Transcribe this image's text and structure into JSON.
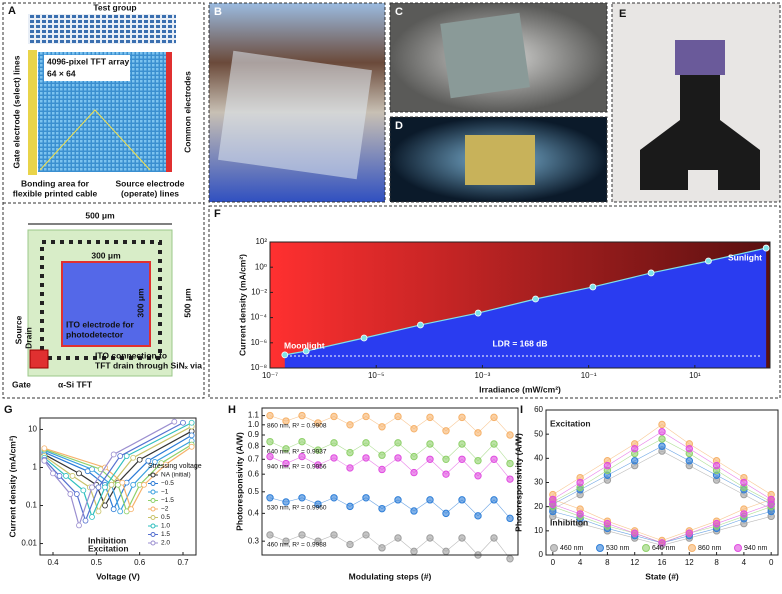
{
  "panels": {
    "A": {
      "letter": "A",
      "test_group": "Test group",
      "array_title": "4096-pixel TFT array",
      "array_size": "64 × 64",
      "gate_lines": "Gate electrode (select) lines",
      "common_electrodes": "Common electrodes",
      "bonding_area": [
        "Bonding area for",
        "flexible printed cable"
      ],
      "source_lines": [
        "Source electrode",
        "(operate) lines"
      ],
      "width_outer": "500 μm",
      "width_inner": "300 μm",
      "height_inner": "300 μm",
      "height_outer": "500 μm",
      "source": "Source",
      "drain": "Drain",
      "ito_electrode": [
        "ITO electrode for",
        "photodetector"
      ],
      "ito_connection": [
        "ITO connection to",
        "TFT drain through SiNₓ via"
      ],
      "gate": "Gate",
      "tft": "α-Si TFT"
    },
    "B": {
      "letter": "B"
    },
    "C": {
      "letter": "C"
    },
    "D": {
      "letter": "D"
    },
    "E": {
      "letter": "E"
    }
  },
  "chart_data": [
    {
      "type": "line",
      "panel": "F",
      "xlabel": "Irradiance (mW/cm²)",
      "ylabel": "Current density (mA/cm²)",
      "xlog": true,
      "ylog": true,
      "color": "#7fe3e8",
      "x": [
        1.9e-07,
        4.8e-07,
        5.9e-06,
        6.8e-05,
        0.00083,
        0.01,
        0.12,
        1.5,
        18,
        220
      ],
      "values": [
        1.1e-07,
        2.2e-07,
        2.4e-06,
        2.6e-05,
        0.00023,
        0.003,
        0.027,
        0.35,
        3.1,
        33
      ],
      "xlim": [
        1e-07,
        260
      ],
      "xticks": [
        {
          "value": 1e-07,
          "label": "10⁻⁷"
        },
        {
          "value": 1e-05,
          "label": "10⁻⁵"
        },
        {
          "value": 0.001,
          "label": "10⁻³"
        },
        {
          "value": 0.1,
          "label": "10⁻¹"
        },
        {
          "value": 10,
          "label": "10¹"
        }
      ],
      "ylim": [
        1e-08,
        100
      ],
      "yticks": [
        {
          "value": 1e-08,
          "label": "10⁻⁸"
        },
        {
          "value": 1e-06,
          "label": "10⁻⁶"
        },
        {
          "value": 0.0001,
          "label": "10⁻⁴"
        },
        {
          "value": 0.01,
          "label": "10⁻²"
        },
        {
          "value": 1,
          "label": "10⁰"
        },
        {
          "value": 100,
          "label": "10²"
        }
      ],
      "annotations": [
        "Moonlight",
        "Sunlight",
        "LDR = 168 dB"
      ]
    },
    {
      "type": "line",
      "panel": "G",
      "xlabel": "Voltage (V)",
      "ylabel": "Current density (mA/cm²)",
      "ylog": true,
      "xlim": [
        0.37,
        0.73
      ],
      "xticks": [
        0.4,
        0.5,
        0.6,
        0.7
      ],
      "ylim": [
        0.005,
        20
      ],
      "yticks": [
        0.01,
        0.1,
        1,
        10
      ],
      "legend": "right",
      "legend_title": "Stressing voltage",
      "annotations": [
        "Inhibition",
        "Excitation"
      ],
      "series": [
        {
          "name": "NA (initial)",
          "color": "#333333",
          "x": [
            0.38,
            0.46,
            0.5,
            0.52,
            0.55,
            0.6,
            0.72
          ],
          "values": [
            2.2,
            0.7,
            0.35,
            0.1,
            0.4,
            1.6,
            9
          ]
        },
        {
          "name": "−0.5",
          "color": "#2c7bd6",
          "x": [
            0.38,
            0.48,
            0.52,
            0.54,
            0.57,
            0.62,
            0.72
          ],
          "values": [
            2.5,
            0.8,
            0.35,
            0.08,
            0.4,
            1.5,
            7
          ]
        },
        {
          "name": "−1",
          "color": "#3aa0e0",
          "x": [
            0.38,
            0.49,
            0.535,
            0.555,
            0.585,
            0.635,
            0.72
          ],
          "values": [
            2.8,
            0.9,
            0.35,
            0.07,
            0.35,
            1.4,
            5
          ]
        },
        {
          "name": "−1.5",
          "color": "#8fd16a",
          "x": [
            0.38,
            0.51,
            0.55,
            0.57,
            0.6,
            0.65,
            0.72
          ],
          "values": [
            3,
            0.9,
            0.35,
            0.07,
            0.35,
            1.3,
            4
          ]
        },
        {
          "name": "−2",
          "color": "#f6b26b",
          "x": [
            0.38,
            0.52,
            0.56,
            0.58,
            0.61,
            0.66,
            0.72
          ],
          "values": [
            3.2,
            1,
            0.4,
            0.08,
            0.35,
            1.2,
            3.5
          ]
        },
        {
          "name": "0.5",
          "color": "#c9c36a",
          "x": [
            0.38,
            0.445,
            0.485,
            0.505,
            0.535,
            0.585,
            0.72
          ],
          "values": [
            2,
            0.6,
            0.3,
            0.07,
            0.35,
            1.8,
            12
          ]
        },
        {
          "name": "1.0",
          "color": "#2fbfbf",
          "x": [
            0.38,
            0.43,
            0.47,
            0.49,
            0.52,
            0.57,
            0.72
          ],
          "values": [
            1.8,
            0.6,
            0.25,
            0.05,
            0.3,
            2,
            15
          ]
        },
        {
          "name": "1.5",
          "color": "#5570d0",
          "x": [
            0.38,
            0.415,
            0.455,
            0.475,
            0.505,
            0.555,
            0.7
          ],
          "values": [
            1.6,
            0.6,
            0.2,
            0.04,
            0.3,
            2,
            15
          ]
        },
        {
          "name": "2.0",
          "color": "#9b8fd0",
          "x": [
            0.38,
            0.4,
            0.44,
            0.46,
            0.49,
            0.54,
            0.68
          ],
          "values": [
            1.5,
            0.7,
            0.2,
            0.03,
            0.3,
            2.2,
            16
          ]
        }
      ]
    },
    {
      "type": "scatter",
      "panel": "H",
      "xlabel": "Modulating steps (#)",
      "ylabel": "Photoresponsivity (A/W)",
      "ylog": true,
      "ylim": [
        0.26,
        1.19
      ],
      "yticks": [
        0.3,
        0.4,
        0.5,
        0.6,
        0.7,
        0.8,
        0.9,
        {
          "value": 1,
          "label": "1.0"
        },
        1.1
      ],
      "series": [
        {
          "name": "860 nm, R² = 0.9908",
          "color": "#f6b26b",
          "values": [
            1.1,
            1.04,
            1.1,
            1.02,
            1.09,
            1.0,
            1.09,
            0.98,
            1.09,
            0.96,
            1.08,
            0.94,
            1.08,
            0.92,
            1.08,
            0.9
          ]
        },
        {
          "name": "640 nm, R² = 0.9937",
          "color": "#8fd16a",
          "values": [
            0.84,
            0.78,
            0.84,
            0.77,
            0.83,
            0.75,
            0.83,
            0.73,
            0.83,
            0.72,
            0.82,
            0.7,
            0.82,
            0.69,
            0.82,
            0.67
          ]
        },
        {
          "name": "940 nm, R² = 0.9956",
          "color": "#e04de0",
          "values": [
            0.72,
            0.67,
            0.72,
            0.66,
            0.71,
            0.64,
            0.71,
            0.63,
            0.71,
            0.61,
            0.7,
            0.6,
            0.7,
            0.59,
            0.7,
            0.57
          ]
        },
        {
          "name": "530 nm, R² = 0.9960",
          "color": "#2f7fd8",
          "values": [
            0.47,
            0.45,
            0.47,
            0.44,
            0.47,
            0.43,
            0.47,
            0.42,
            0.46,
            0.41,
            0.46,
            0.4,
            0.46,
            0.39,
            0.46,
            0.38
          ]
        },
        {
          "name": "460 nm, R² = 0.9988",
          "color": "#9e9e9e",
          "values": [
            0.32,
            0.3,
            0.32,
            0.3,
            0.32,
            0.29,
            0.32,
            0.28,
            0.31,
            0.27,
            0.31,
            0.27,
            0.31,
            0.26,
            0.31,
            0.25
          ]
        }
      ]
    },
    {
      "type": "scatter",
      "panel": "I",
      "xlabel": "State (#)",
      "ylabel": "Photoresponsivity (A/W)",
      "x": [
        0,
        4,
        8,
        12,
        16,
        20,
        24,
        28,
        32
      ],
      "xlim": [
        -1,
        33
      ],
      "xticks": [
        0,
        4,
        8,
        12,
        16,
        {
          "value": 20,
          "label": "12"
        },
        {
          "value": 24,
          "label": "8"
        },
        {
          "value": 28,
          "label": "4"
        },
        {
          "value": 32,
          "label": "0"
        }
      ],
      "ylim": [
        0,
        60
      ],
      "yticks": [
        0,
        10,
        20,
        30,
        40,
        50,
        60
      ],
      "legend": "bottom",
      "annotations": [
        "Excitation",
        "Inhibition"
      ],
      "series": [
        {
          "name": "460 nm",
          "color": "#9e9e9e",
          "excitation": [
            19,
            25,
            31,
            37,
            43,
            37,
            31,
            25,
            19
          ],
          "inhibition": [
            16,
            13,
            10,
            7,
            4,
            7,
            10,
            13,
            16
          ]
        },
        {
          "name": "530 nm",
          "color": "#2f7fd8",
          "excitation": [
            21,
            27,
            33,
            39,
            45,
            39,
            33,
            27,
            21
          ],
          "inhibition": [
            18,
            15,
            11,
            8,
            5,
            8,
            11,
            15,
            18
          ]
        },
        {
          "name": "640 nm",
          "color": "#8fd16a",
          "excitation": [
            22,
            28,
            35,
            42,
            48,
            42,
            35,
            28,
            22
          ],
          "inhibition": [
            20,
            16,
            12,
            9,
            5,
            9,
            12,
            16,
            20
          ]
        },
        {
          "name": "860 nm",
          "color": "#f6b26b",
          "excitation": [
            25,
            32,
            39,
            46,
            54,
            46,
            39,
            32,
            25
          ],
          "inhibition": [
            23,
            19,
            14,
            10,
            6,
            10,
            14,
            19,
            23
          ]
        },
        {
          "name": "940 nm",
          "color": "#e04de0",
          "excitation": [
            23,
            30,
            37,
            44,
            51,
            44,
            37,
            30,
            23
          ],
          "inhibition": [
            21,
            17,
            13,
            9,
            5,
            9,
            13,
            17,
            21
          ]
        }
      ]
    }
  ]
}
